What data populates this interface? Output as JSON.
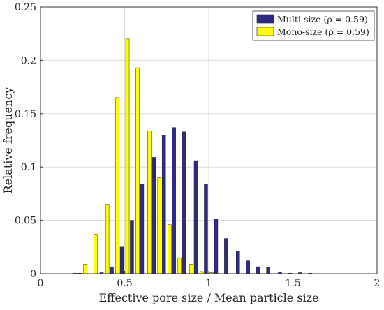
{
  "chart_data": {
    "type": "bar",
    "xlabel": "Effective pore size / Mean particle size",
    "ylabel": "Relative frequency",
    "xlim": [
      0,
      2
    ],
    "ylim": [
      0,
      0.25
    ],
    "x_ticks": [
      0,
      0.5,
      1,
      1.5,
      2
    ],
    "x_tick_labels": [
      "0",
      "0.5",
      "1",
      "1.5",
      "2"
    ],
    "y_ticks": [
      0,
      0.05,
      0.1,
      0.15,
      0.2,
      0.25
    ],
    "y_tick_labels": [
      "0",
      "0.05",
      "0.1",
      "0.15",
      "0.2",
      "0.25"
    ],
    "grid": true,
    "legend_position": "top-right",
    "series": [
      {
        "name": "Multi-size (ρ = 0.59)",
        "color": "#2e2a85",
        "x": [
          0.22,
          0.35,
          0.41,
          0.47,
          0.53,
          0.59,
          0.66,
          0.72,
          0.78,
          0.84,
          0.91,
          0.97,
          1.03,
          1.09,
          1.16,
          1.22,
          1.28,
          1.34,
          1.41,
          1.47,
          1.53,
          1.59
        ],
        "values": [
          0.0005,
          0.001,
          0.006,
          0.025,
          0.05,
          0.084,
          0.109,
          0.13,
          0.137,
          0.133,
          0.106,
          0.084,
          0.051,
          0.033,
          0.021,
          0.012,
          0.0065,
          0.006,
          0.0015,
          0.0005,
          0.001,
          0.0005
        ]
      },
      {
        "name": "Mono-size (ρ = 0.59)",
        "color": "#ffff00",
        "x": [
          0.22,
          0.28,
          0.34,
          0.41,
          0.47,
          0.53,
          0.59,
          0.66,
          0.72,
          0.78,
          0.84,
          0.91,
          0.97,
          1.03
        ],
        "values": [
          0.0005,
          0.009,
          0.037,
          0.065,
          0.165,
          0.22,
          0.193,
          0.134,
          0.09,
          0.046,
          0.015,
          0.009,
          0.002,
          0.001
        ]
      }
    ]
  }
}
